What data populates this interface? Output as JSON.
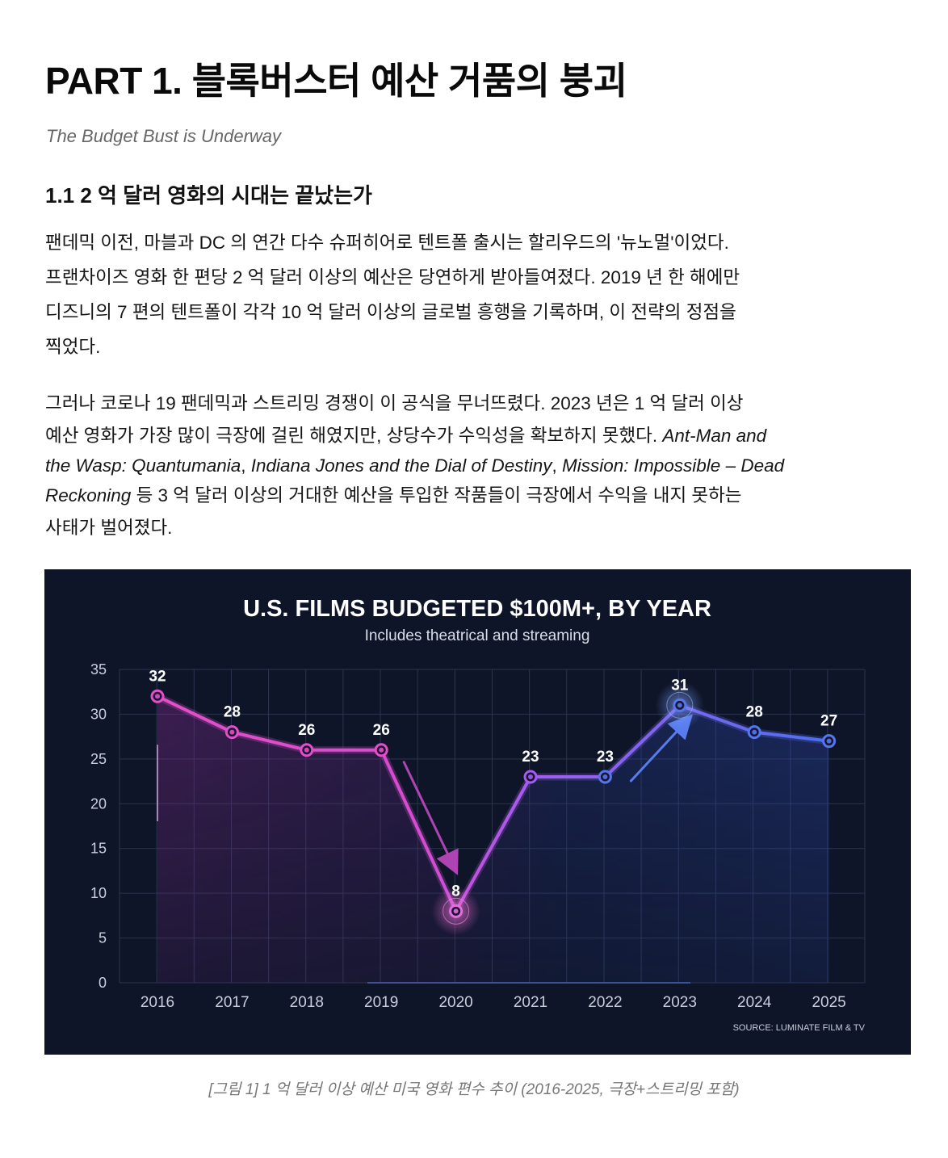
{
  "article": {
    "title": "PART 1. 블록버스터 예산 거품의 붕괴",
    "subtitle": "The Budget Bust is Underway",
    "section_heading": "1.1 2 억 달러 영화의 시대는 끝났는가",
    "paragraph1": [
      "팬데믹 이전, 마블과 DC 의 연간 다수 슈퍼히어로 텐트폴 출시는 할리우드의 '뉴노멀'이었다.",
      "프랜차이즈 영화 한 편당 2 억 달러 이상의 예산은 당연하게 받아들여졌다. 2019 년 한 해에만",
      "디즈니의 7 편의 텐트폴이 각각 10 억 달러 이상의 글로벌 흥행을 기록하며, 이 전략의 정점을",
      "찍었다."
    ],
    "paragraph2": {
      "line1": "그러나 코로나 19 팬데믹과 스트리밍 경쟁이 이 공식을 무너뜨렸다. 2023 년은 1 억 달러 이상",
      "line2_text": "예산 영화가 가장 많이 극장에 걸린 해였지만, 상당수가 수익성을 확보하지 못했다. ",
      "film1_part1": "Ant-Man and",
      "film1_part2": "the Wasp: Quantumania",
      "sep1": ", ",
      "film2": "Indiana Jones and the Dial of Destiny",
      "sep2": ", ",
      "film3_part1": "Mission: Impossible – Dead",
      "film3_part2": "Reckoning",
      "line4_rest": " 등 3 억 달러 이상의 거대한 예산을 투입한 작품들이 극장에서 수익을 내지 못하는",
      "line5": "사태가 벌어졌다."
    },
    "figure_caption": "[그림 1] 1 억 달러 이상 예산 미국 영화 편수 추이 (2016-2025, 극장+스트리밍 포함)"
  },
  "chart_data": {
    "type": "line",
    "title": "U.S. FILMS BUDGETED $100M+, BY YEAR",
    "subtitle": "Includes theatrical and streaming",
    "source": "SOURCE: LUMINATE FILM & TV",
    "categories": [
      "2016",
      "2017",
      "2018",
      "2019",
      "2020",
      "2021",
      "2022",
      "2023",
      "2024",
      "2025"
    ],
    "values": [
      32,
      28,
      26,
      26,
      8,
      23,
      23,
      31,
      28,
      27
    ],
    "data_labels": [
      "32",
      "28",
      "26",
      "26",
      "8",
      "23",
      "23",
      "31",
      "28",
      "27"
    ],
    "yticks": [
      "0",
      "5",
      "10",
      "15",
      "20",
      "25",
      "30",
      "35"
    ],
    "ylim": [
      0,
      35
    ],
    "grid": true,
    "colors": {
      "background": "#0e1528",
      "pink": "#e34fc8",
      "purple": "#a45cf0",
      "blue": "#5577ee",
      "grid": "#2b3550",
      "text": "#ffffff",
      "tick_text": "#c9cfdd"
    }
  }
}
